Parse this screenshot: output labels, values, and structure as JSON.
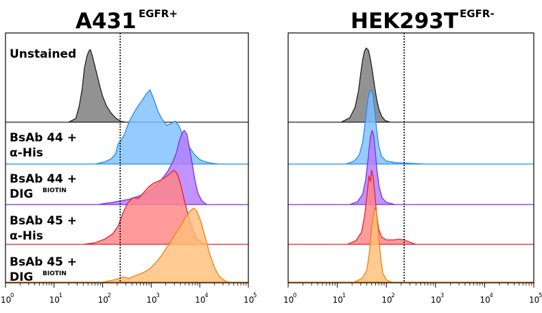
{
  "chart_data": [
    {
      "type": "area",
      "title": "A431",
      "title_superscript": "EGFR+",
      "x_scale": "log",
      "xlim": [
        1,
        100000
      ],
      "x_tick_labels": [
        {
          "base": "10",
          "exp": "0"
        },
        {
          "base": "10",
          "exp": "1"
        },
        {
          "base": "10",
          "exp": "2"
        },
        {
          "base": "10",
          "exp": "3"
        },
        {
          "base": "10",
          "exp": "4"
        },
        {
          "base": "10",
          "exp": "5"
        }
      ],
      "gate_x": 230,
      "rows": [
        {
          "label_lines": [
            "Unstained"
          ],
          "superscript": "",
          "color": "#7a7a7a",
          "stroke": "#1e1e1e",
          "points": [
            [
              20,
              0
            ],
            [
              28,
              0.05
            ],
            [
              33,
              0.22
            ],
            [
              38,
              0.45
            ],
            [
              42,
              0.72
            ],
            [
              47,
              0.88
            ],
            [
              52,
              0.96
            ],
            [
              56,
              0.98
            ],
            [
              61,
              0.9
            ],
            [
              68,
              0.78
            ],
            [
              78,
              0.62
            ],
            [
              88,
              0.48
            ],
            [
              100,
              0.35
            ],
            [
              120,
              0.22
            ],
            [
              150,
              0.12
            ],
            [
              190,
              0.05
            ],
            [
              240,
              0.01
            ],
            [
              300,
              0
            ]
          ]
        },
        {
          "label_lines": [
            "BsAb 44 +",
            "α-His"
          ],
          "superscript": "",
          "color": "#7fbfff",
          "stroke": "#1e8cf0",
          "points": [
            [
              70,
              0
            ],
            [
              110,
              0.03
            ],
            [
              150,
              0.07
            ],
            [
              185,
              0.14
            ],
            [
              210,
              0.28
            ],
            [
              240,
              0.32
            ],
            [
              290,
              0.42
            ],
            [
              350,
              0.57
            ],
            [
              430,
              0.68
            ],
            [
              530,
              0.78
            ],
            [
              650,
              0.86
            ],
            [
              800,
              0.95
            ],
            [
              950,
              1.0
            ],
            [
              1150,
              0.86
            ],
            [
              1400,
              0.7
            ],
            [
              1700,
              0.6
            ],
            [
              2100,
              0.52
            ],
            [
              2600,
              0.55
            ],
            [
              3100,
              0.58
            ],
            [
              3700,
              0.52
            ],
            [
              4400,
              0.4
            ],
            [
              5300,
              0.3
            ],
            [
              6500,
              0.2
            ],
            [
              8000,
              0.12
            ],
            [
              10000,
              0.06
            ],
            [
              13000,
              0.03
            ],
            [
              18000,
              0.01
            ],
            [
              25000,
              0
            ]
          ]
        },
        {
          "label_lines": [
            "BsAb 44 +",
            "DIG"
          ],
          "superscript": "BIOTIN",
          "color": "#b57bff",
          "stroke": "#7b2fe0",
          "points": [
            [
              80,
              0
            ],
            [
              160,
              0.03
            ],
            [
              350,
              0.07
            ],
            [
              650,
              0.13
            ],
            [
              1100,
              0.22
            ],
            [
              1600,
              0.33
            ],
            [
              2200,
              0.45
            ],
            [
              2800,
              0.58
            ],
            [
              3300,
              0.7
            ],
            [
              3800,
              0.86
            ],
            [
              4300,
              0.96
            ],
            [
              4800,
              1.0
            ],
            [
              5400,
              0.95
            ],
            [
              6000,
              0.8
            ],
            [
              7000,
              0.55
            ],
            [
              8000,
              0.32
            ],
            [
              9200,
              0.15
            ],
            [
              11000,
              0.05
            ],
            [
              14000,
              0
            ]
          ]
        },
        {
          "label_lines": [
            "BsAb 45 +",
            "α-His"
          ],
          "superscript": "",
          "color": "#ff8585",
          "stroke": "#e81e2a",
          "points": [
            [
              40,
              0
            ],
            [
              70,
              0.02
            ],
            [
              110,
              0.07
            ],
            [
              160,
              0.14
            ],
            [
              210,
              0.25
            ],
            [
              260,
              0.42
            ],
            [
              330,
              0.56
            ],
            [
              420,
              0.63
            ],
            [
              550,
              0.62
            ],
            [
              700,
              0.7
            ],
            [
              900,
              0.78
            ],
            [
              1150,
              0.83
            ],
            [
              1500,
              0.86
            ],
            [
              1900,
              0.9
            ],
            [
              2400,
              0.95
            ],
            [
              2900,
              1.0
            ],
            [
              3400,
              0.96
            ],
            [
              4000,
              0.82
            ],
            [
              4700,
              0.62
            ],
            [
              5500,
              0.45
            ],
            [
              6500,
              0.28
            ],
            [
              7700,
              0.15
            ],
            [
              9000,
              0.07
            ],
            [
              11000,
              0.02
            ],
            [
              14000,
              0
            ]
          ]
        },
        {
          "label_lines": [
            "BsAb 45 +",
            "DIG"
          ],
          "superscript": "BIOTIN",
          "color": "#ffc07a",
          "stroke": "#f07f0f",
          "points": [
            [
              100,
              0
            ],
            [
              200,
              0.04
            ],
            [
              260,
              0.07
            ],
            [
              350,
              0.05
            ],
            [
              480,
              0.09
            ],
            [
              650,
              0.12
            ],
            [
              900,
              0.17
            ],
            [
              1200,
              0.25
            ],
            [
              1600,
              0.35
            ],
            [
              2000,
              0.45
            ],
            [
              2400,
              0.52
            ],
            [
              2800,
              0.6
            ],
            [
              3400,
              0.68
            ],
            [
              4200,
              0.78
            ],
            [
              5200,
              0.88
            ],
            [
              6300,
              0.96
            ],
            [
              7500,
              1.0
            ],
            [
              8800,
              0.95
            ],
            [
              10500,
              0.82
            ],
            [
              13000,
              0.6
            ],
            [
              16000,
              0.38
            ],
            [
              20000,
              0.2
            ],
            [
              25000,
              0.08
            ],
            [
              32000,
              0.02
            ],
            [
              40000,
              0
            ]
          ]
        }
      ]
    },
    {
      "type": "area",
      "title": "HEK293T",
      "title_superscript": "EGFR-",
      "x_scale": "log",
      "xlim": [
        1,
        100000
      ],
      "x_tick_labels": [
        {
          "base": "10",
          "exp": "0"
        },
        {
          "base": "10",
          "exp": "1"
        },
        {
          "base": "10",
          "exp": "2"
        },
        {
          "base": "10",
          "exp": "3"
        },
        {
          "base": "10",
          "exp": "4"
        },
        {
          "base": "10",
          "exp": "5"
        }
      ],
      "gate_x": 230,
      "rows": [
        {
          "label_lines": [],
          "superscript": "",
          "color": "#7a7a7a",
          "stroke": "#1e1e1e",
          "points": [
            [
              12,
              0
            ],
            [
              18,
              0.06
            ],
            [
              23,
              0.2
            ],
            [
              27,
              0.42
            ],
            [
              30,
              0.66
            ],
            [
              33,
              0.85
            ],
            [
              36,
              0.96
            ],
            [
              39,
              1.0
            ],
            [
              43,
              0.97
            ],
            [
              47,
              0.86
            ],
            [
              52,
              0.68
            ],
            [
              57,
              0.5
            ],
            [
              63,
              0.32
            ],
            [
              70,
              0.18
            ],
            [
              80,
              0.08
            ],
            [
              95,
              0.02
            ],
            [
              120,
              0
            ]
          ]
        },
        {
          "label_lines": [],
          "superscript": "",
          "color": "#7fbfff",
          "stroke": "#1e8cf0",
          "points": [
            [
              15,
              0
            ],
            [
              22,
              0.04
            ],
            [
              28,
              0.12
            ],
            [
              33,
              0.3
            ],
            [
              38,
              0.62
            ],
            [
              42,
              0.88
            ],
            [
              46,
              0.98
            ],
            [
              50,
              1.0
            ],
            [
              54,
              0.92
            ],
            [
              58,
              0.72
            ],
            [
              63,
              0.48
            ],
            [
              70,
              0.24
            ],
            [
              80,
              0.1
            ],
            [
              100,
              0.04
            ],
            [
              150,
              0.02
            ],
            [
              300,
              0.01
            ],
            [
              600,
              0
            ]
          ]
        },
        {
          "label_lines": [],
          "superscript": "",
          "color": "#b57bff",
          "stroke": "#7b2fe0",
          "points": [
            [
              18,
              0
            ],
            [
              26,
              0.04
            ],
            [
              33,
              0.14
            ],
            [
              38,
              0.34
            ],
            [
              43,
              0.66
            ],
            [
              47,
              0.9
            ],
            [
              51,
              1.0
            ],
            [
              55,
              0.94
            ],
            [
              59,
              0.74
            ],
            [
              64,
              0.48
            ],
            [
              71,
              0.24
            ],
            [
              82,
              0.09
            ],
            [
              100,
              0.03
            ],
            [
              150,
              0
            ]
          ]
        },
        {
          "label_lines": [],
          "superscript": "",
          "color": "#ff8585",
          "stroke": "#e81e2a",
          "points": [
            [
              16,
              0
            ],
            [
              24,
              0.05
            ],
            [
              31,
              0.16
            ],
            [
              36,
              0.38
            ],
            [
              41,
              0.72
            ],
            [
              44,
              0.92
            ],
            [
              47,
              0.85
            ],
            [
              50,
              1.0
            ],
            [
              54,
              0.9
            ],
            [
              58,
              0.7
            ],
            [
              63,
              0.42
            ],
            [
              70,
              0.2
            ],
            [
              80,
              0.1
            ],
            [
              100,
              0.06
            ],
            [
              140,
              0.06
            ],
            [
              180,
              0.07
            ],
            [
              230,
              0.06
            ],
            [
              300,
              0.03
            ],
            [
              400,
              0
            ]
          ]
        },
        {
          "label_lines": [],
          "superscript": "",
          "color": "#ffc07a",
          "stroke": "#f07f0f",
          "points": [
            [
              22,
              0
            ],
            [
              32,
              0.05
            ],
            [
              40,
              0.16
            ],
            [
              45,
              0.4
            ],
            [
              50,
              0.72
            ],
            [
              54,
              0.9
            ],
            [
              58,
              1.0
            ],
            [
              62,
              0.96
            ],
            [
              66,
              0.8
            ],
            [
              71,
              0.56
            ],
            [
              77,
              0.3
            ],
            [
              85,
              0.12
            ],
            [
              100,
              0.03
            ],
            [
              130,
              0
            ]
          ]
        }
      ]
    }
  ]
}
